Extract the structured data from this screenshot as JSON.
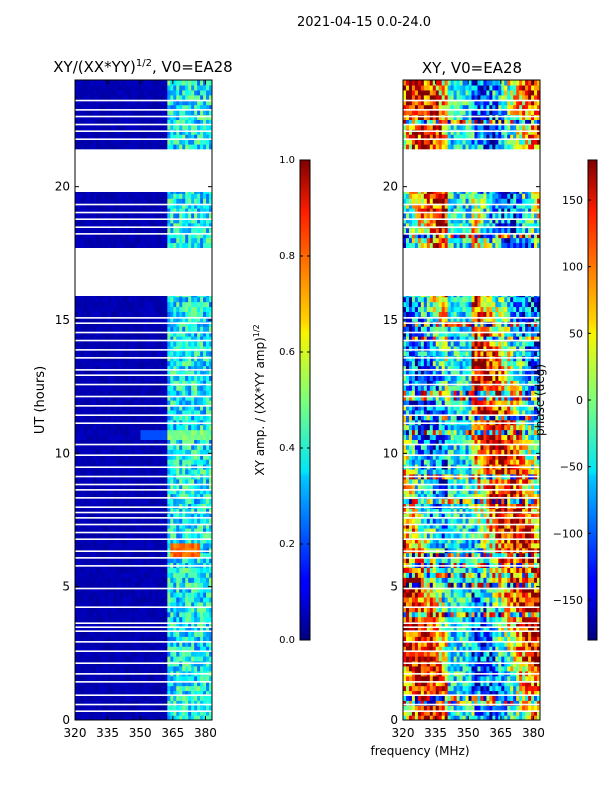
{
  "suptitle": "2021-04-15 0.0-24.0",
  "shared_xlabel": "frequency (MHz)",
  "colors": {
    "white_gap": "#ffffff",
    "axis": "#000000"
  },
  "chart_data": [
    {
      "type": "heatmap",
      "title_main": "XY/(XX*YY)",
      "title_exp": "1/2",
      "title_rest": ", V0=EA28",
      "xlabel": "",
      "ylabel": "UT (hours)",
      "xlim": [
        320,
        383
      ],
      "ylim": [
        0,
        24
      ],
      "xticks": [
        320,
        335,
        350,
        365,
        380
      ],
      "yticks": [
        0,
        5,
        10,
        15,
        20
      ],
      "colormap": "jet",
      "colorbar": {
        "label_main": "XY amp. / (XX*YY amp)",
        "label_exp": "1/2",
        "range": [
          0.0,
          1.0
        ],
        "ticks": [
          "0.0",
          "0.2",
          "0.4",
          "0.6",
          "0.8",
          "1.0"
        ]
      },
      "band_features": [
        {
          "from_mhz": 363,
          "to_mhz": 382,
          "level": 0.35,
          "note": "elevated amplitude band"
        },
        {
          "from_mhz": 320,
          "to_mhz": 362,
          "level": 0.03,
          "note": "background"
        }
      ],
      "missing_hour_ranges": [
        [
          15.9,
          17.7
        ],
        [
          19.8,
          21.4
        ]
      ]
    },
    {
      "type": "heatmap",
      "title_main": "XY, V0=EA28",
      "xlabel": "frequency (MHz)",
      "ylabel": "",
      "xlim": [
        320,
        383
      ],
      "ylim": [
        0,
        24
      ],
      "xticks": [
        320,
        335,
        350,
        365,
        380
      ],
      "yticks": [
        0,
        5,
        10,
        15,
        20
      ],
      "colormap": "jet",
      "colorbar": {
        "label_main": "phase (deg)",
        "range": [
          -180,
          180
        ],
        "ticks": [
          "−150",
          "−100",
          "−50",
          "0",
          "50",
          "100",
          "150"
        ],
        "tick_values": [
          -150,
          -100,
          -50,
          0,
          50,
          100,
          150
        ]
      },
      "missing_hour_ranges": [
        [
          15.9,
          17.7
        ],
        [
          19.8,
          21.4
        ]
      ]
    }
  ]
}
